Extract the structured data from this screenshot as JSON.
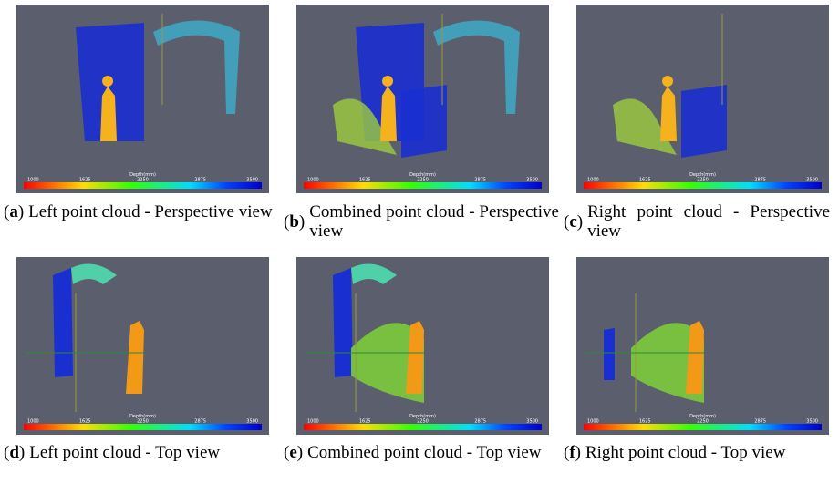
{
  "panels": [
    {
      "label": "a",
      "caption": "Left point cloud - Perspective view"
    },
    {
      "label": "b",
      "caption": "Combined point cloud - Perspective view"
    },
    {
      "label": "c",
      "caption": "Right point cloud - Perspective view"
    },
    {
      "label": "d",
      "caption": "Left point cloud - Top view"
    },
    {
      "label": "e",
      "caption": "Combined point cloud - Top view"
    },
    {
      "label": "f",
      "caption": "Right point cloud - Top view"
    }
  ],
  "colorbar": {
    "title": "Depth(mm)",
    "ticks": [
      "1000",
      "1625",
      "2250",
      "2875",
      "3500"
    ]
  }
}
